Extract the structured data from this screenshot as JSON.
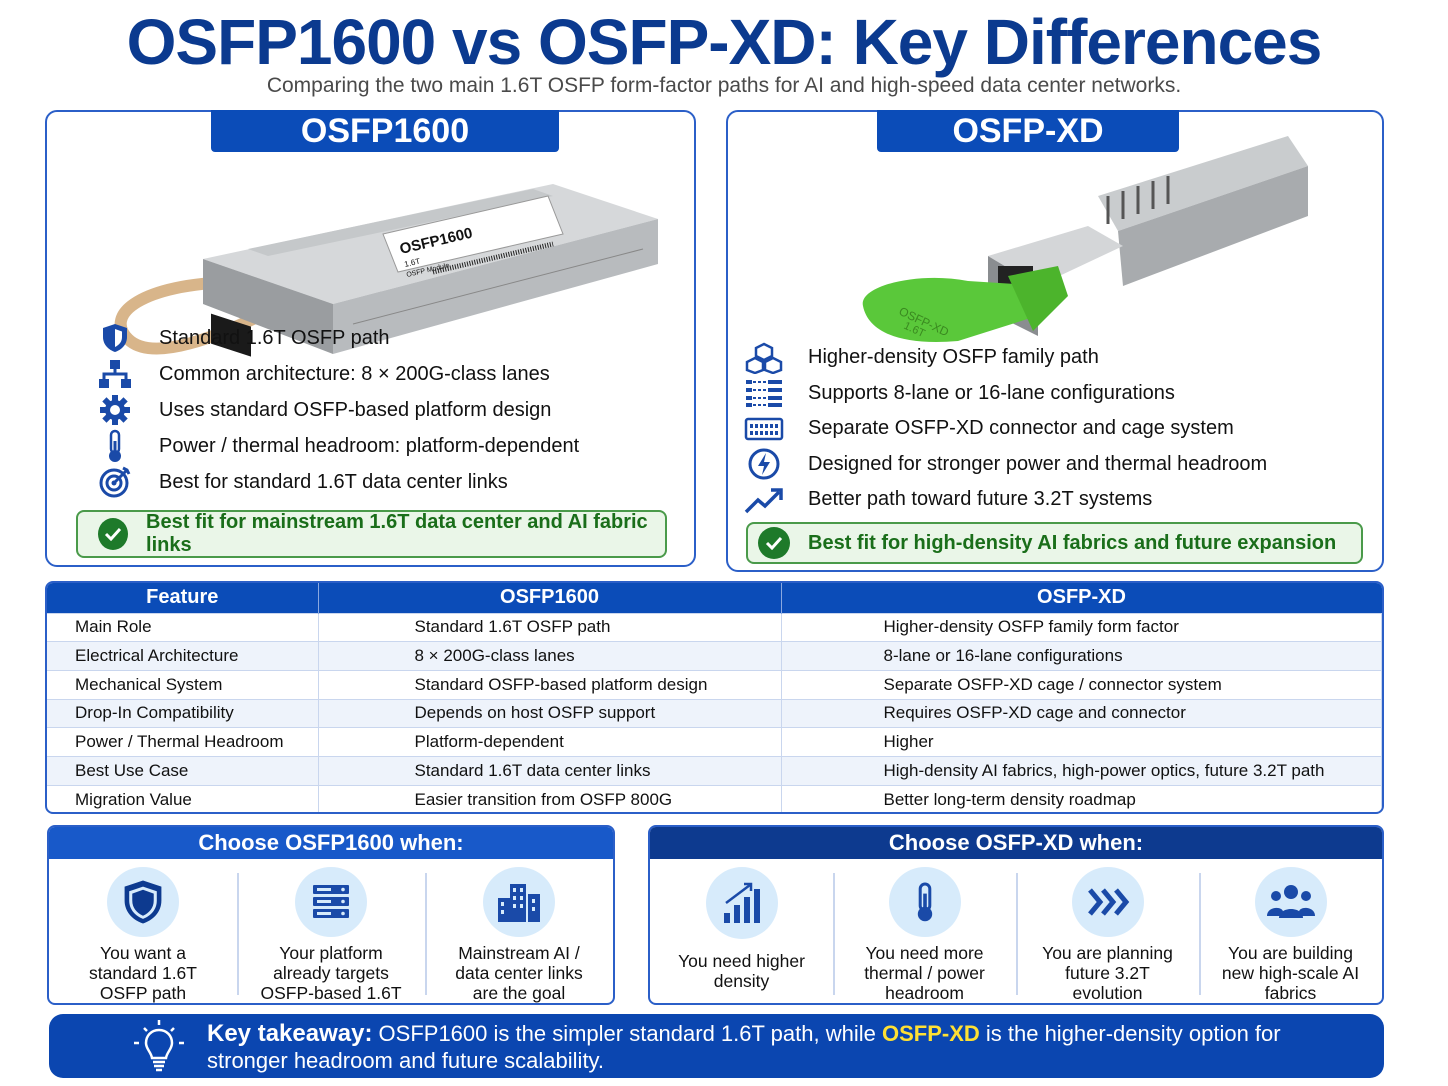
{
  "title": "OSFP1600 vs OSFP-XD: Key Differences",
  "subtitle": "Comparing the two main 1.6T OSFP form-factor paths for AI and high-speed data center networks.",
  "panel_a": {
    "title": "OSFP1600",
    "module_label": [
      "OSFP1600",
      "1.6T",
      "OSFP Module"
    ],
    "features": [
      {
        "icon": "shield-icon",
        "text": "Standard 1.6T OSFP path"
      },
      {
        "icon": "hierarchy-icon",
        "text": "Common architecture: 8 × 200G-class lanes"
      },
      {
        "icon": "gear-icon",
        "text": "Uses standard OSFP-based platform design"
      },
      {
        "icon": "thermometer-icon",
        "text": "Power / thermal headroom: platform-dependent"
      },
      {
        "icon": "target-icon",
        "text": "Best for standard 1.6T data center links"
      }
    ],
    "best_fit": "Best fit for mainstream 1.6T data center and AI fabric links"
  },
  "panel_b": {
    "title": "OSFP-XD",
    "module_label": [
      "OSFP-XD",
      "1.6T"
    ],
    "features": [
      {
        "icon": "cubes-icon",
        "text": "Higher-density OSFP family path"
      },
      {
        "icon": "lanes-icon",
        "text": "Supports 8-lane or 16-lane configurations"
      },
      {
        "icon": "connector-icon",
        "text": "Separate OSFP-XD connector and cage system"
      },
      {
        "icon": "power-icon",
        "text": "Designed for stronger power and thermal headroom"
      },
      {
        "icon": "trend-up-icon",
        "text": "Better path toward future 3.2T systems"
      }
    ],
    "best_fit": "Best fit for high-density AI fabrics and future expansion"
  },
  "table": {
    "headers": [
      "Feature",
      "OSFP1600",
      "OSFP-XD"
    ],
    "rows": [
      [
        "Main Role",
        "Standard 1.6T OSFP path",
        "Higher-density OSFP family form factor"
      ],
      [
        "Electrical Architecture",
        "8 × 200G-class lanes",
        "8-lane or 16-lane configurations"
      ],
      [
        "Mechanical System",
        "Standard OSFP-based platform design",
        "Separate OSFP-XD cage / connector system"
      ],
      [
        "Drop-In Compatibility",
        "Depends on host OSFP support",
        "Requires OSFP-XD cage and connector"
      ],
      [
        "Power / Thermal Headroom",
        "Platform-dependent",
        "Higher"
      ],
      [
        "Best Use Case",
        "Standard 1.6T data center links",
        "High-density AI fabrics, high-power optics, future 3.2T path"
      ],
      [
        "Migration Value",
        "Easier transition from OSFP 800G",
        "Better long-term density roadmap"
      ]
    ]
  },
  "choose_a": {
    "title": "Choose OSFP1600 when:",
    "items": [
      {
        "icon": "shield-icon",
        "text": "You want a standard 1.6T OSFP path"
      },
      {
        "icon": "server-icon",
        "text": "Your platform already targets OSFP-based 1.6T"
      },
      {
        "icon": "buildings-icon",
        "text": "Mainstream AI / data center links are the goal"
      }
    ]
  },
  "choose_b": {
    "title": "Choose OSFP-XD when:",
    "items": [
      {
        "icon": "bar-chart-icon",
        "text": "You need higher density"
      },
      {
        "icon": "thermometer-icon",
        "text": "You need more thermal / power headroom"
      },
      {
        "icon": "chevrons-icon",
        "text": "You are planning future 3.2T evolution"
      },
      {
        "icon": "people-icon",
        "text": "You are building new high-scale AI fabrics"
      }
    ]
  },
  "takeaway": {
    "lead": "Key takeaway:",
    "part1": " OSFP1600 is the simpler standard 1.6T path, while ",
    "highlight": "OSFP-XD",
    "part2": " is the higher-density option for stronger headroom and future scalability."
  },
  "colors": {
    "brand_blue": "#0b4cb8",
    "title_blue": "#0b3a8f",
    "green": "#1e7a2a",
    "highlight": "#ffe033"
  }
}
